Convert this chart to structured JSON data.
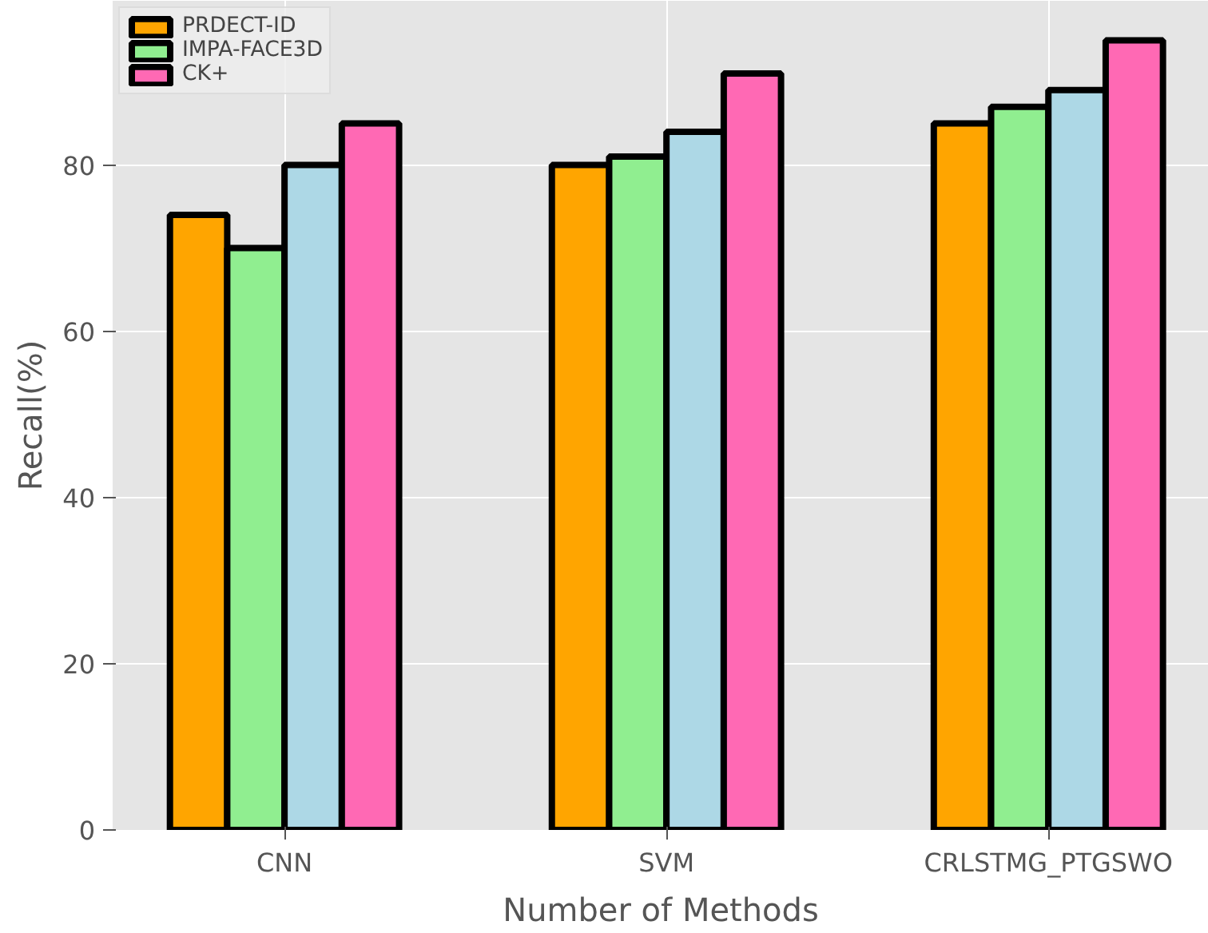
{
  "chart_data": {
    "type": "bar",
    "xlabel": "Number of Methods",
    "ylabel": "Recall(%)",
    "categories": [
      "CNN",
      "SVM",
      "CRLSTMG_PTGSWO"
    ],
    "series": [
      {
        "name": "PRDECT-ID",
        "color": "#ffa500",
        "values": [
          74,
          80,
          85
        ]
      },
      {
        "name": "IMPA-FACE3D",
        "color": "#90ee90",
        "values": [
          70,
          81,
          87
        ]
      },
      {
        "color": "#add8e6",
        "values": [
          80,
          84,
          89
        ]
      },
      {
        "name": "CK+",
        "color": "#ff69b4",
        "values": [
          85,
          91,
          95
        ]
      }
    ],
    "ylim": [
      0,
      99.75
    ],
    "yticks": [
      0,
      20,
      40,
      60,
      80
    ],
    "grid": true,
    "legend": "top left"
  }
}
